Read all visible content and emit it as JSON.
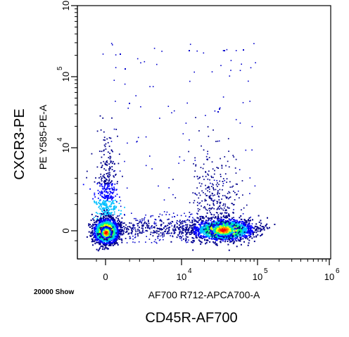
{
  "chart_data": {
    "type": "scatter",
    "plot_kind": "flow-cytometry pseudocolor density plot",
    "title": "",
    "xlabel": "AF700 R712-APCA700-A",
    "ylabel": "PE Y585-PE-A",
    "x_marker": "CD45R-AF700",
    "y_marker": "CXCR3-PE",
    "event_count_label": "20000 Show",
    "x_scale": "biexponential",
    "y_scale": "biexponential",
    "x_ticks": [
      {
        "value": 0,
        "base": "0",
        "exp": ""
      },
      {
        "value": 10000,
        "base": "10",
        "exp": "4"
      },
      {
        "value": 100000,
        "base": "10",
        "exp": "5"
      },
      {
        "value": 1000000,
        "base": "10",
        "exp": "6"
      }
    ],
    "y_ticks": [
      {
        "value": 0,
        "base": "0",
        "exp": ""
      },
      {
        "value": 10000,
        "base": "10",
        "exp": "4"
      },
      {
        "value": 100000,
        "base": "10",
        "exp": "5"
      },
      {
        "value": 1000000,
        "base": "10",
        "exp": "6"
      }
    ],
    "grid": false,
    "legend": "none",
    "colormap": [
      "#00008b",
      "#0000ff",
      "#00bfff",
      "#00ff80",
      "#ffff00",
      "#ff8000",
      "#ff0000"
    ],
    "populations": [
      {
        "name": "",
        "x_center": 0,
        "y_center": 0,
        "density": "highest",
        "color_peak": "#ff0000"
      },
      {
        "name": "",
        "x_center": 35000,
        "y_center": 0,
        "density": "high",
        "color_peak": "#ffff00"
      },
      {
        "name": "",
        "x_center": 0,
        "y_center": 2500,
        "density": "low",
        "color_peak": "#0000ff"
      }
    ]
  }
}
